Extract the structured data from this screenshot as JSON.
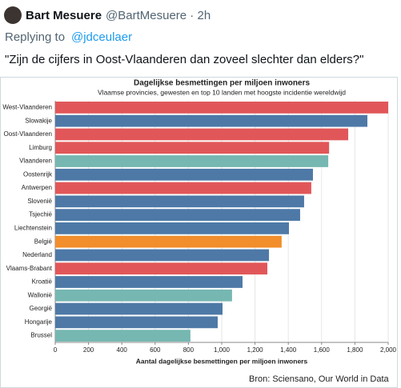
{
  "tweet": {
    "name": "Bart Mesuere",
    "handle": "@BartMesuere · 2h",
    "replying": "Replying to",
    "reply_to": "@jdceulaer",
    "text": "\"Zijn de cijfers in Oost-Vlaanderen dan zoveel slechter dan elders?\""
  },
  "chart_data": {
    "type": "barh",
    "title": "Dagelijkse besmettingen per miljoen inwoners",
    "subtitle": "Vlaamse provincies, gewesten en top 10 landen met hoogste incidentie wereldwijd",
    "x_label": "Aantal dagelijkse besmettingen per miljoen inwoners",
    "source": "Bron: Sciensano, Our World in Data",
    "categories": [
      "West-Vlaanderen",
      "Slowakije",
      "Oost-Vlaanderen",
      "Limburg",
      "Vlaanderen",
      "Oostenrijk",
      "Antwerpen",
      "Slovenië",
      "Tsjechië",
      "Liechtenstein",
      "België",
      "Nederland",
      "Vlaams-Brabant",
      "Kroatië",
      "Wallonië",
      "Georgië",
      "Hongarije",
      "Brussel"
    ],
    "values": [
      2000,
      1875,
      1760,
      1645,
      1640,
      1548,
      1538,
      1495,
      1471,
      1404,
      1360,
      1284,
      1274,
      1125,
      1062,
      1005,
      976,
      812
    ],
    "colors": [
      "#e15759",
      "#4e79a7",
      "#e15759",
      "#e15759",
      "#76b7b2",
      "#4e79a7",
      "#e15759",
      "#4e79a7",
      "#4e79a7",
      "#4e79a7",
      "#f28e2b",
      "#4e79a7",
      "#e15759",
      "#4e79a7",
      "#76b7b2",
      "#4e79a7",
      "#4e79a7",
      "#76b7b2"
    ],
    "xlim": [
      0,
      2000
    ],
    "xticks": [
      0,
      200,
      400,
      600,
      800,
      {
        "value": 1000,
        "label": "1,000"
      },
      {
        "value": 1200,
        "label": "1,200"
      },
      {
        "value": 1400,
        "label": "1,400"
      },
      {
        "value": 1600,
        "label": "1,600"
      },
      {
        "value": 1800,
        "label": "1,800"
      },
      {
        "value": 2000,
        "label": "2,000"
      }
    ],
    "grid": true
  }
}
